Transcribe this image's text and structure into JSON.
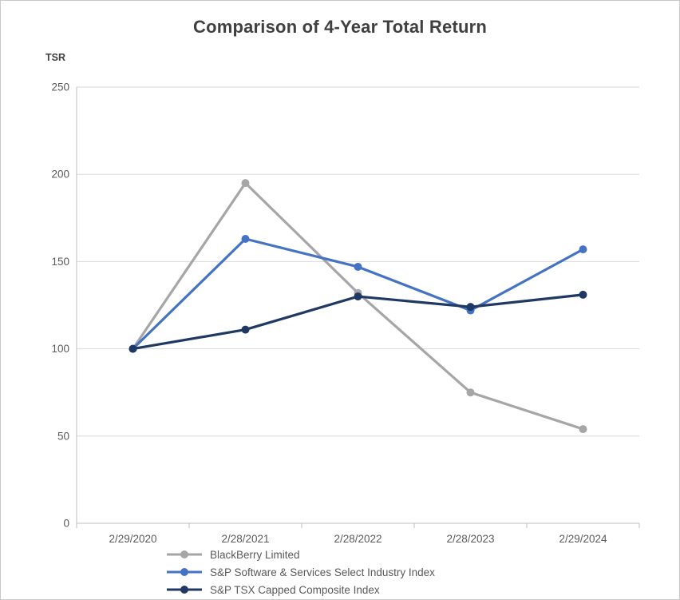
{
  "page": {
    "title": "Comparison of 4-Year Total Return"
  },
  "chart_data": {
    "type": "line",
    "title": "Comparison of 4-Year Total Return",
    "xlabel": "",
    "ylabel": "TSR",
    "categories": [
      "2/29/2020",
      "2/28/2021",
      "2/28/2022",
      "2/28/2023",
      "2/29/2024"
    ],
    "series": [
      {
        "name": "BlackBerry Limited",
        "color": "#a6a6a6",
        "values": [
          100,
          195,
          132,
          75,
          54
        ]
      },
      {
        "name": "S&P Software & Services Select Industry Index",
        "color": "#4472c4",
        "values": [
          100,
          163,
          147,
          122,
          157
        ]
      },
      {
        "name": "S&P TSX Capped Composite Index",
        "color": "#1f3864",
        "values": [
          100,
          111,
          130,
          124,
          131
        ]
      }
    ],
    "ylim": [
      0,
      250
    ],
    "yticks": [
      0,
      50,
      100,
      150,
      200,
      250
    ],
    "grid": true,
    "legend_position": "bottom-left"
  },
  "colors": {
    "grid": "#d9d9d9",
    "axis": "#bfbfbf",
    "tick_text": "#595959",
    "title_text": "#404040"
  }
}
